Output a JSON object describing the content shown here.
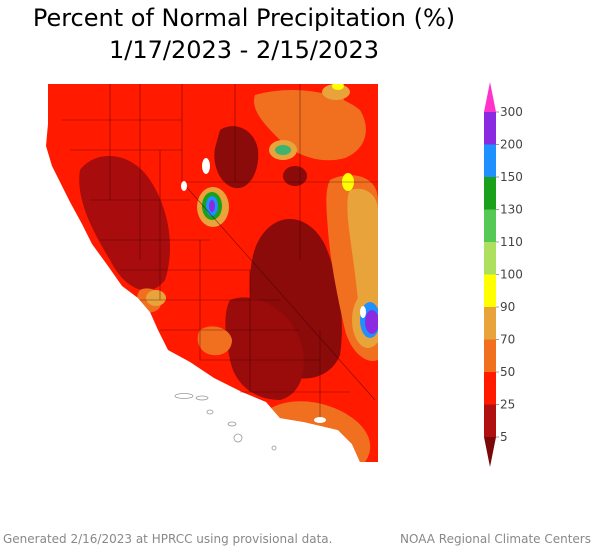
{
  "title": {
    "line1": "Percent of Normal Precipitation (%)",
    "line2": "1/17/2023 - 2/15/2023"
  },
  "legend": {
    "ticks": [
      "300",
      "200",
      "150",
      "130",
      "110",
      "100",
      "90",
      "70",
      "50",
      "25",
      "5"
    ],
    "bands": [
      {
        "color": "#ff33cc"
      },
      {
        "color": "#8a2be2"
      },
      {
        "color": "#1e90ff"
      },
      {
        "color": "#1aa01a"
      },
      {
        "color": "#55c855"
      },
      {
        "color": "#aee060"
      },
      {
        "color": "#ffff00"
      },
      {
        "color": "#e8a33a"
      },
      {
        "color": "#f07020"
      },
      {
        "color": "#ff1a00"
      },
      {
        "color": "#b01010"
      },
      {
        "color": "#7a0808"
      }
    ]
  },
  "footer": {
    "left": "Generated 2/16/2023 at HPRCC using provisional data.",
    "right": "NOAA Regional Climate Centers"
  },
  "colors": {
    "dark_red": "#8b0a0a",
    "red": "#ff1a00",
    "orange": "#f07020",
    "tan": "#e8a33a",
    "yellow": "#ffff00",
    "green": "#3cb371",
    "blue": "#1e90ff",
    "purple": "#8a2be2",
    "background": "#ffffff"
  }
}
